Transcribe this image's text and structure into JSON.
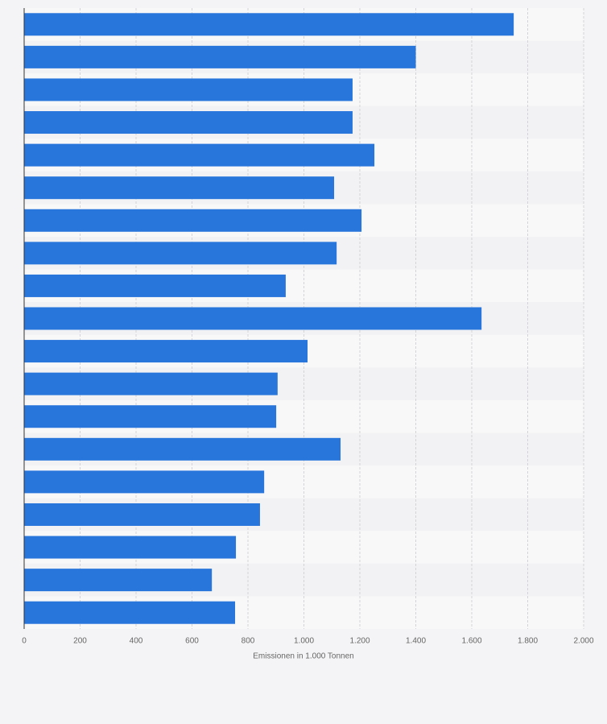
{
  "chart_data": {
    "type": "hbar",
    "xlabel": "Emissionen in 1.000 Tonnen",
    "values": [
      1750,
      1400,
      1174,
      1174,
      1252,
      1108,
      1206,
      1117,
      935,
      1635,
      1013,
      906,
      901,
      1131,
      858,
      843,
      757,
      671,
      754
    ],
    "color": "#2875dc",
    "xlim": [
      0,
      2000
    ],
    "xticks": [
      0,
      200,
      400,
      600,
      800,
      {
        "value": 1000,
        "label": "1.000"
      },
      {
        "value": 1200,
        "label": "1.200"
      },
      {
        "value": 1400,
        "label": "1.400"
      },
      {
        "value": 1600,
        "label": "1.600"
      },
      {
        "value": 1800,
        "label": "1.800"
      },
      {
        "value": 2000,
        "label": "2.000"
      }
    ],
    "grid": true
  }
}
